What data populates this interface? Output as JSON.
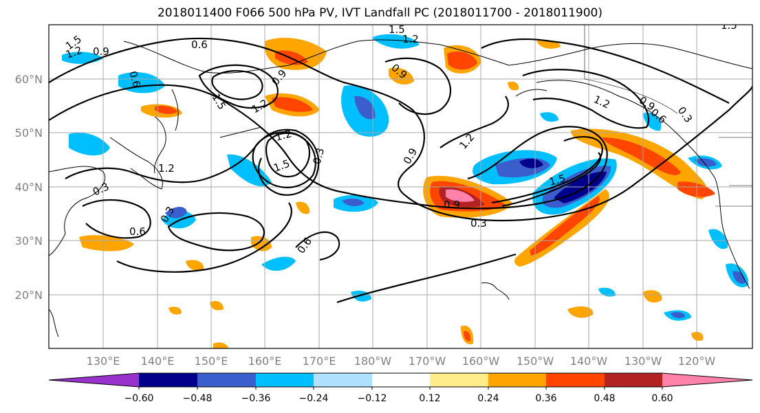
{
  "title": "2018011400 F066 500 hPa PV, IVT Landfall PC (2018011700 - 2018011900)",
  "lat_labels": [
    "60°N",
    "50°N",
    "40°N",
    "30°N",
    "20°N"
  ],
  "lon_labels": [
    "130°E",
    "140°E",
    "150°E",
    "160°E",
    "170°E",
    "180°W",
    "170°W",
    "160°W",
    "150°W",
    "140°W",
    "130°W",
    "120°W"
  ],
  "colorbar": {
    "colors": [
      "#9932cc",
      "#00008b",
      "#3a5fcd",
      "#00bfff",
      "#b0e2ff",
      "#ffffff",
      "#ffec8b",
      "#ffa500",
      "#ff4500",
      "#b22222",
      "#ff82ab"
    ],
    "ticks": [
      "−0.60",
      "−0.48",
      "−0.36",
      "−0.24",
      "−0.12",
      "0.12",
      "0.24",
      "0.36",
      "0.48",
      "0.60"
    ]
  },
  "contour_labels": [
    "1.5",
    "1.2",
    "0.9",
    "0.6",
    "1.5",
    "1.2",
    "0.9",
    "1.5",
    "1.2",
    "0.9",
    "0.6",
    "1.2",
    "0.9",
    "0.6",
    "0.3",
    "1.5",
    "1.2",
    "0.3",
    "1.2",
    "0.9",
    "1.5",
    "0.9",
    "0.3",
    "0.3",
    "0.6",
    "0.6",
    "0.3",
    "1.2",
    "1.5"
  ]
}
